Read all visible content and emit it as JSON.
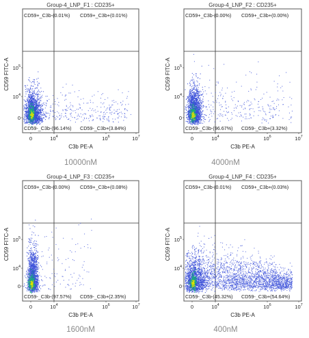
{
  "chart_data": [
    {
      "type": "scatter",
      "title": "Group-4_LNP_F1 : CD235+",
      "xlabel": "C3b PE-A",
      "ylabel": "CD59 FITC-A",
      "x_scale": "log",
      "y_scale": "log",
      "xticks": [
        "0",
        "10",
        "4",
        "10",
        "6",
        "10",
        "7"
      ],
      "xtick_labels": [
        {
          "base": "0"
        },
        {
          "base": "10",
          "exp": "4"
        },
        {
          "base": "10",
          "exp": "6"
        },
        {
          "base": "10",
          "exp": "7"
        }
      ],
      "ytick_labels": [
        {
          "base": "0"
        },
        {
          "base": "10",
          "exp": "4"
        },
        {
          "base": "10",
          "exp": "5"
        }
      ],
      "quadrants": {
        "top_left": "CD59+_C3b-(0.01%)",
        "top_right": "CD59+_C3b+(0.01%)",
        "bottom_left": "CD59-_C3b-(96.14%)",
        "bottom_right": "CD59-_C3b+(3.84%)"
      },
      "caption": "10000nM"
    },
    {
      "type": "scatter",
      "title": "Group-4_LNP_F2 : CD235+",
      "xlabel": "C3b PE-A",
      "ylabel": "CD59 FITC-A",
      "x_scale": "log",
      "y_scale": "log",
      "xtick_labels": [
        {
          "base": "0"
        },
        {
          "base": "10",
          "exp": "4"
        },
        {
          "base": "10",
          "exp": "6"
        },
        {
          "base": "10",
          "exp": "7"
        }
      ],
      "ytick_labels": [
        {
          "base": "0"
        },
        {
          "base": "10",
          "exp": "4"
        },
        {
          "base": "10",
          "exp": "5"
        }
      ],
      "quadrants": {
        "top_left": "CD59+_C3b-(0.00%)",
        "top_right": "CD59+_C3b+(0.00%)",
        "bottom_left": "CD59-_C3b-(96.67%)",
        "bottom_right": "CD59-_C3b+(3.32%)"
      },
      "caption": "4000nM"
    },
    {
      "type": "scatter",
      "title": "Group-4_LNP_F3 : CD235+",
      "xlabel": "C3b PE-A",
      "ylabel": "CD59 FITC-A",
      "x_scale": "log",
      "y_scale": "log",
      "xtick_labels": [
        {
          "base": "0"
        },
        {
          "base": "10",
          "exp": "4"
        },
        {
          "base": "10",
          "exp": "6"
        },
        {
          "base": "10",
          "exp": "7"
        }
      ],
      "ytick_labels": [
        {
          "base": "0"
        },
        {
          "base": "10",
          "exp": "4"
        },
        {
          "base": "10",
          "exp": "5"
        }
      ],
      "quadrants": {
        "top_left": "CD59+_C3b-(0.00%)",
        "top_right": "CD59+_C3b+(0.08%)",
        "bottom_left": "CD59-_C3b-(97.57%)",
        "bottom_right": "CD59-_C3b+(2.35%)"
      },
      "caption": "1600nM"
    },
    {
      "type": "scatter",
      "title": "Group-4_LNP_F4 : CD235+",
      "xlabel": "C3b PE-A",
      "ylabel": "CD59 FITC-A",
      "x_scale": "log",
      "y_scale": "log",
      "xtick_labels": [
        {
          "base": "0"
        },
        {
          "base": "10",
          "exp": "4"
        },
        {
          "base": "10",
          "exp": "6"
        },
        {
          "base": "10",
          "exp": "7"
        }
      ],
      "ytick_labels": [
        {
          "base": "0"
        },
        {
          "base": "10",
          "exp": "4"
        },
        {
          "base": "10",
          "exp": "5"
        }
      ],
      "quadrants": {
        "top_left": "CD59+_C3b-(0.01%)",
        "top_right": "CD59+_C3b+(0.03%)",
        "bottom_left": "CD59-_C3b-(45.32%)",
        "bottom_right": "CD59-_C3b+(54.64%)"
      },
      "caption": "400nM"
    }
  ],
  "colors": {
    "dots": "#3a4fd8",
    "dense_core": "#18b07a",
    "dense_hot": "#e0e000",
    "frame": "#555555",
    "gate_line": "#333333",
    "caption": "#8a8a8a"
  }
}
